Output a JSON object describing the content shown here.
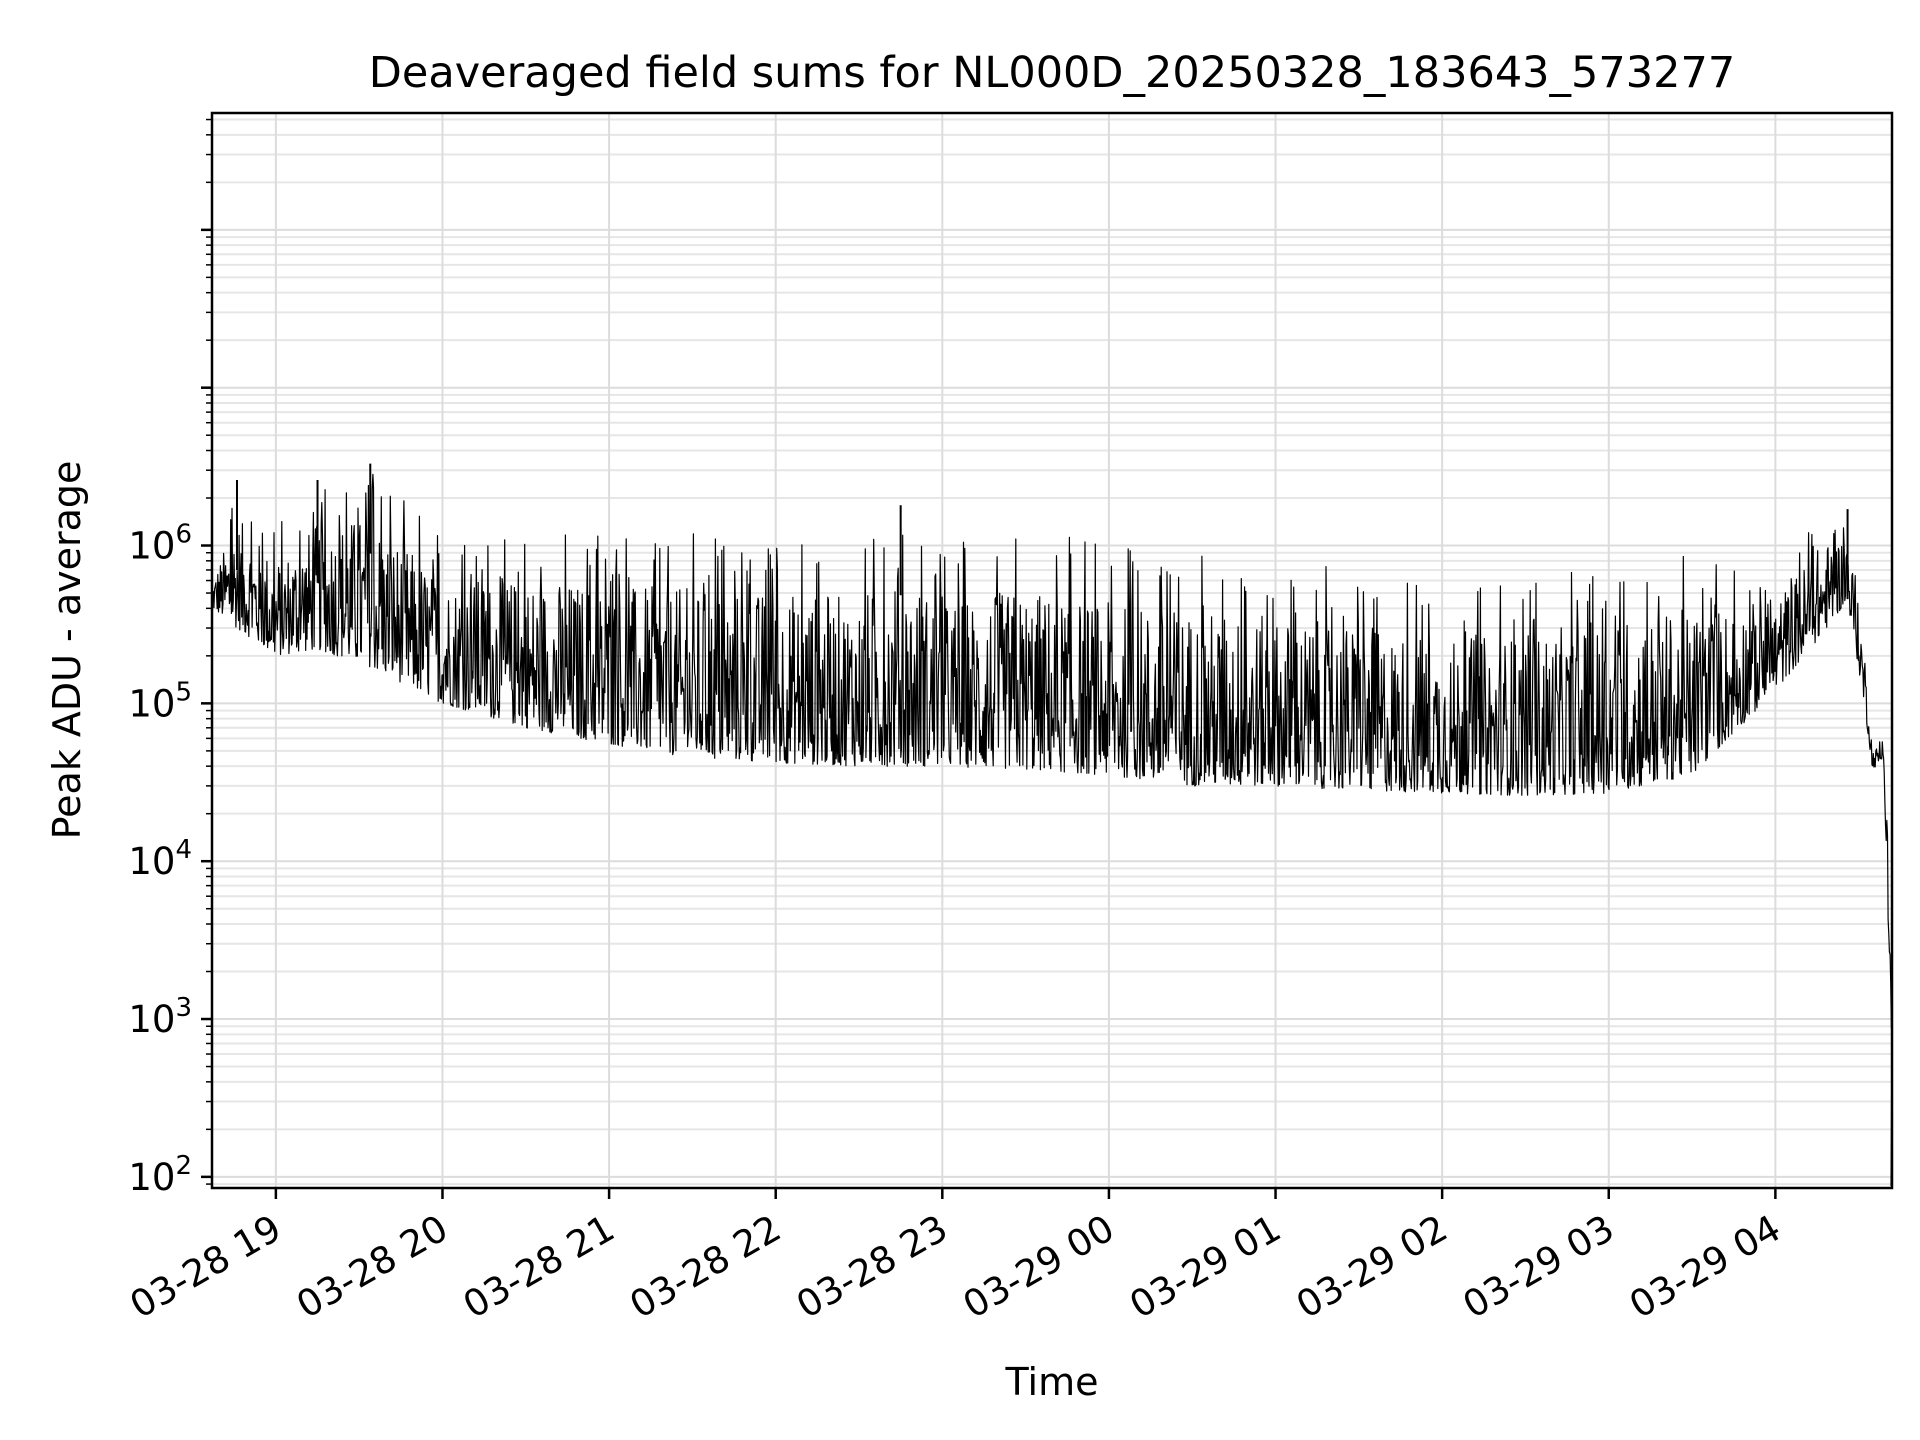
{
  "chart_data": {
    "type": "line",
    "title": "Deaveraged field sums for NL000D_20250328_183643_573277",
    "xlabel": "Time",
    "ylabel": "Peak ADU - average",
    "yscale": "log",
    "ylim": [
      85,
      550000000
    ],
    "xlim": [
      "2025-03-28 18:37",
      "2025-03-29 04:42"
    ],
    "grid": "both",
    "x_ticks": [
      {
        "t": "2025-03-28 19:00",
        "label": "03-28 19"
      },
      {
        "t": "2025-03-28 20:00",
        "label": "03-28 20"
      },
      {
        "t": "2025-03-28 21:00",
        "label": "03-28 21"
      },
      {
        "t": "2025-03-28 22:00",
        "label": "03-28 22"
      },
      {
        "t": "2025-03-28 23:00",
        "label": "03-28 23"
      },
      {
        "t": "2025-03-29 00:00",
        "label": "03-29 00"
      },
      {
        "t": "2025-03-29 01:00",
        "label": "03-29 01"
      },
      {
        "t": "2025-03-29 02:00",
        "label": "03-29 02"
      },
      {
        "t": "2025-03-29 03:00",
        "label": "03-29 03"
      },
      {
        "t": "2025-03-29 04:00",
        "label": "03-29 04"
      }
    ],
    "y_ticks": [
      {
        "value": 100,
        "base": "10",
        "exp": "2"
      },
      {
        "value": 1000,
        "base": "10",
        "exp": "3"
      },
      {
        "value": 10000,
        "base": "10",
        "exp": "4"
      },
      {
        "value": 100000,
        "base": "10",
        "exp": "5"
      },
      {
        "value": 1000000,
        "base": "10",
        "exp": "6"
      }
    ],
    "series": [
      {
        "color": "#000000",
        "envelope": [
          {
            "t": "2025-03-28 18:37",
            "low": 400000,
            "high": 700000
          },
          {
            "t": "2025-03-28 18:46",
            "low": 300000,
            "high": 2600000
          },
          {
            "t": "2025-03-28 19:00",
            "low": 200000,
            "high": 1300000
          },
          {
            "t": "2025-03-28 19:15",
            "low": 220000,
            "high": 2600000
          },
          {
            "t": "2025-03-28 19:34",
            "low": 170000,
            "high": 3300000
          },
          {
            "t": "2025-03-28 20:00",
            "low": 100000,
            "high": 1150000
          },
          {
            "t": "2025-03-28 20:30",
            "low": 70000,
            "high": 1300000
          },
          {
            "t": "2025-03-28 21:00",
            "low": 55000,
            "high": 1250000
          },
          {
            "t": "2025-03-28 21:30",
            "low": 45000,
            "high": 1200000
          },
          {
            "t": "2025-03-28 22:00",
            "low": 42000,
            "high": 1200000
          },
          {
            "t": "2025-03-28 22:30",
            "low": 40000,
            "high": 1100000
          },
          {
            "t": "2025-03-28 22:45",
            "low": 40000,
            "high": 1800000
          },
          {
            "t": "2025-03-28 23:00",
            "low": 40000,
            "high": 1000000
          },
          {
            "t": "2025-03-28 23:30",
            "low": 38000,
            "high": 1300000
          },
          {
            "t": "2025-03-29 00:00",
            "low": 35000,
            "high": 1000000
          },
          {
            "t": "2025-03-29 00:30",
            "low": 30000,
            "high": 950000
          },
          {
            "t": "2025-03-29 01:00",
            "low": 30000,
            "high": 800000
          },
          {
            "t": "2025-03-29 01:30",
            "low": 28000,
            "high": 700000
          },
          {
            "t": "2025-03-29 02:00",
            "low": 27000,
            "high": 550000
          },
          {
            "t": "2025-03-29 02:30",
            "low": 26000,
            "high": 600000
          },
          {
            "t": "2025-03-29 03:00",
            "low": 27000,
            "high": 800000
          },
          {
            "t": "2025-03-29 03:30",
            "low": 35000,
            "high": 900000
          },
          {
            "t": "2025-03-29 04:00",
            "low": 120000,
            "high": 700000
          },
          {
            "t": "2025-03-29 04:15",
            "low": 250000,
            "high": 1500000
          },
          {
            "t": "2025-03-29 04:26",
            "low": 450000,
            "high": 1700000
          },
          {
            "t": "2025-03-29 04:32",
            "low": 100000,
            "high": 300000
          },
          {
            "t": "2025-03-29 04:35",
            "low": 38000,
            "high": 58000
          },
          {
            "t": "2025-03-29 04:39",
            "low": 45000,
            "high": 58000
          },
          {
            "t": "2025-03-29 04:42",
            "low": 500,
            "high": 3000
          }
        ],
        "spikes": [
          {
            "t": "2025-03-28 18:46",
            "value": 2600000
          },
          {
            "t": "2025-03-28 19:15",
            "value": 2600000
          },
          {
            "t": "2025-03-28 19:34",
            "value": 3300000
          },
          {
            "t": "2025-03-28 22:45",
            "value": 1800000
          },
          {
            "t": "2025-03-29 04:26",
            "value": 1700000
          }
        ]
      }
    ]
  }
}
